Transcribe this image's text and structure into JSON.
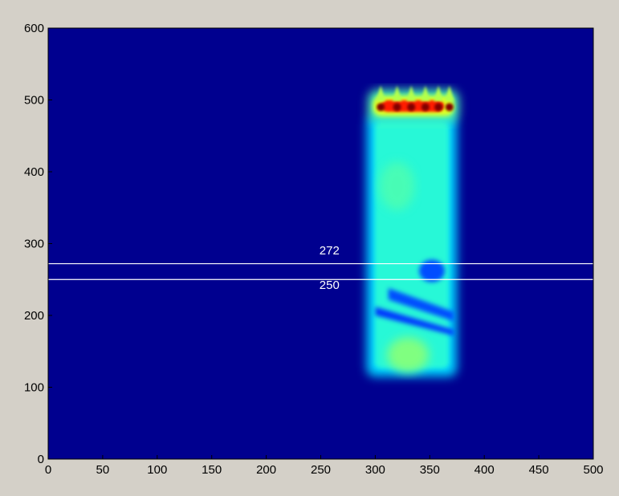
{
  "chart_data": {
    "type": "heatmap",
    "title": "",
    "xlabel": "",
    "ylabel": "",
    "xlim": [
      0,
      500
    ],
    "ylim": [
      0,
      600
    ],
    "x_ticks": [
      0,
      50,
      100,
      150,
      200,
      250,
      300,
      350,
      400,
      450,
      500
    ],
    "y_ticks": [
      0,
      100,
      200,
      300,
      400,
      500,
      600
    ],
    "x_tick_labels": [
      "0",
      "50",
      "100",
      "150",
      "200",
      "250",
      "300",
      "350",
      "400",
      "450",
      "500"
    ],
    "y_tick_labels": [
      "0",
      "100",
      "200",
      "300",
      "400",
      "500",
      "600"
    ],
    "colormap": "jet",
    "background_color": "#00008f",
    "grid": false,
    "hot_band": {
      "x_range": [
        298,
        372
      ],
      "y_range": [
        478,
        505
      ],
      "level": 1.0,
      "peaks_x": [
        305,
        320,
        333,
        346,
        358,
        368
      ]
    },
    "tail_region": {
      "x_range": [
        295,
        372
      ],
      "y_range": [
        115,
        480
      ],
      "level": 0.42
    },
    "hline_values": [
      272,
      250
    ],
    "annotations": [
      {
        "text": "272",
        "x": 255,
        "y": 285
      },
      {
        "text": "250",
        "x": 255,
        "y": 237
      }
    ]
  }
}
